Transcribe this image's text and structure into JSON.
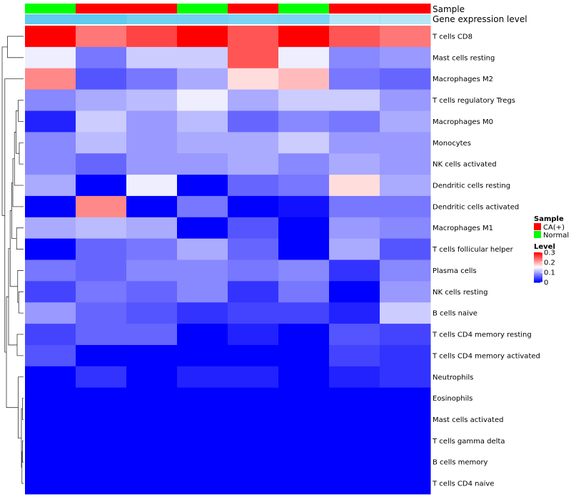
{
  "chart_data": {
    "type": "heatmap",
    "annotation_labels": {
      "sample": "Sample",
      "expression": "Gene expression level"
    },
    "samples": [
      "Normal",
      "CA(+)",
      "CA(+)",
      "Normal",
      "CA(+)",
      "Normal",
      "CA(+)",
      "CA(+)"
    ],
    "expression_bar": [
      0.97,
      0.97,
      0.85,
      0.85,
      0.8,
      0.8,
      0.45,
      0.45
    ],
    "rows": [
      "T cells CD8",
      "Mast cells resting",
      "Macrophages M2",
      "T cells regulatory  Tregs",
      "Macrophages M0",
      "Monocytes",
      "NK cells activated",
      "Dendritic cells resting",
      "Dendritic cells activated",
      "Macrophages M1",
      "T cells follicular helper",
      "Plasma cells",
      "NK cells resting",
      "B cells naive",
      "T cells CD4 memory resting",
      "T cells CD4 memory activated",
      "Neutrophils",
      "Eosinophils",
      "Mast cells activated",
      "T cells gamma delta",
      "B cells memory",
      "T cells CD4 naive"
    ],
    "values": [
      [
        0.3,
        0.23,
        0.26,
        0.3,
        0.25,
        0.3,
        0.25,
        0.23
      ],
      [
        0.14,
        0.07,
        0.12,
        0.12,
        0.25,
        0.14,
        0.08,
        0.09
      ],
      [
        0.22,
        0.05,
        0.07,
        0.1,
        0.17,
        0.19,
        0.07,
        0.06
      ],
      [
        0.08,
        0.1,
        0.11,
        0.14,
        0.1,
        0.12,
        0.12,
        0.09
      ],
      [
        0.02,
        0.12,
        0.09,
        0.11,
        0.06,
        0.08,
        0.07,
        0.1
      ],
      [
        0.08,
        0.11,
        0.09,
        0.1,
        0.1,
        0.12,
        0.09,
        0.09
      ],
      [
        0.08,
        0.06,
        0.09,
        0.09,
        0.1,
        0.08,
        0.1,
        0.09
      ],
      [
        0.1,
        0.0,
        0.14,
        0.0,
        0.06,
        0.07,
        0.17,
        0.1
      ],
      [
        0.0,
        0.22,
        0.0,
        0.07,
        0.0,
        0.01,
        0.07,
        0.07
      ],
      [
        0.1,
        0.11,
        0.1,
        0.0,
        0.05,
        0.0,
        0.09,
        0.08
      ],
      [
        0.0,
        0.06,
        0.07,
        0.1,
        0.06,
        0.0,
        0.1,
        0.05
      ],
      [
        0.07,
        0.06,
        0.08,
        0.08,
        0.07,
        0.08,
        0.03,
        0.08
      ],
      [
        0.04,
        0.07,
        0.06,
        0.08,
        0.03,
        0.07,
        0.0,
        0.09
      ],
      [
        0.09,
        0.06,
        0.05,
        0.03,
        0.04,
        0.04,
        0.02,
        0.12
      ],
      [
        0.04,
        0.06,
        0.06,
        0.0,
        0.02,
        0.0,
        0.05,
        0.04
      ],
      [
        0.05,
        0.0,
        0.0,
        0.0,
        0.0,
        0.0,
        0.04,
        0.03
      ],
      [
        0.0,
        0.03,
        0.0,
        0.02,
        0.02,
        0.0,
        0.02,
        0.03
      ],
      [
        0.0,
        0.0,
        0.0,
        0.0,
        0.0,
        0.0,
        0.0,
        0.0
      ],
      [
        0.0,
        0.0,
        0.0,
        0.0,
        0.0,
        0.0,
        0.0,
        0.0
      ],
      [
        0.0,
        0.0,
        0.0,
        0.0,
        0.0,
        0.0,
        0.0,
        0.0
      ],
      [
        0.0,
        0.0,
        0.0,
        0.0,
        0.0,
        0.0,
        0.0,
        0.0
      ],
      [
        0.0,
        0.0,
        0.0,
        0.0,
        0.0,
        0.0,
        0.0,
        0.0
      ]
    ],
    "value_range": [
      0,
      0.3
    ],
    "colors": {
      "low": "#0000ff",
      "mid": "#ffffff",
      "high": "#ff0000",
      "ca_pos": "#ff0000",
      "normal": "#00ff00",
      "expression": "#5bc8f0"
    },
    "legend": {
      "sample_title": "Sample",
      "sample_entries": [
        {
          "label": "CA(+)",
          "key": "CA(+)"
        },
        {
          "label": "Normal",
          "key": "Normal"
        }
      ],
      "level_title": "Level",
      "level_ticks": [
        {
          "label": "0.3",
          "value": 0.3
        },
        {
          "label": "0.2",
          "value": 0.2
        },
        {
          "label": "0.1",
          "value": 0.1
        },
        {
          "label": "0",
          "value": 0
        }
      ],
      "placement": "right"
    },
    "dendrogram": {
      "merges": [
        [
          -1,
          -2
        ],
        [
          -18,
          -19
        ],
        [
          -20,
          -21
        ],
        [
          -22,
          3
        ],
        [
          2,
          4
        ],
        [
          -17,
          5
        ],
        [
          -15,
          -16
        ],
        [
          -13,
          -14
        ],
        [
          -12,
          8
        ],
        [
          -10,
          -11
        ],
        [
          -6,
          -7
        ],
        [
          -4,
          -5
        ],
        [
          11,
          12
        ],
        [
          -8,
          13
        ],
        [
          -9,
          14
        ],
        [
          10,
          15
        ],
        [
          9,
          16
        ],
        [
          7,
          17
        ],
        [
          6,
          18
        ],
        [
          -3,
          19
        ],
        [
          1,
          20
        ]
      ],
      "heights": [
        0.03,
        0.002,
        0.002,
        0.003,
        0.004,
        0.01,
        0.012,
        0.009,
        0.011,
        0.013,
        0.008,
        0.01,
        0.014,
        0.017,
        0.02,
        0.022,
        0.025,
        0.028,
        0.032,
        0.035,
        0.04
      ]
    }
  }
}
